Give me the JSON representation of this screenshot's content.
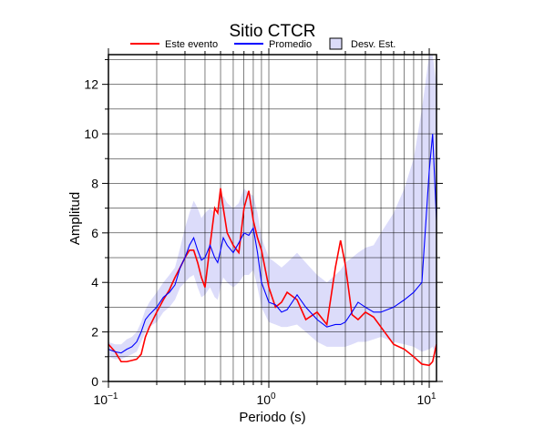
{
  "chart_data": {
    "type": "line",
    "title": "Sitio CTCR",
    "x_label": "Periodo (s)",
    "y_label": "Amplitud",
    "log_x": true,
    "grid": true,
    "xlim": [
      0.1,
      11.1
    ],
    "ylim": [
      0,
      13.2
    ],
    "xticks": [
      {
        "value": 0.1,
        "label": "10",
        "exponent": "−1"
      },
      {
        "value": 1,
        "label": "10",
        "exponent": "0"
      },
      {
        "value": 10,
        "label": "10",
        "exponent": "1"
      }
    ],
    "xminor": [
      0.2,
      0.3,
      0.4,
      0.5,
      0.6,
      0.7,
      0.8,
      0.9,
      2,
      3,
      4,
      5,
      6,
      7,
      8,
      9
    ],
    "yticks": [
      0,
      2,
      4,
      6,
      8,
      10,
      12
    ],
    "yminor": [
      1,
      3,
      5,
      7,
      9,
      11,
      13
    ],
    "x": [
      0.1,
      0.11,
      0.12,
      0.13,
      0.14,
      0.15,
      0.16,
      0.17,
      0.18,
      0.2,
      0.22,
      0.24,
      0.26,
      0.28,
      0.3,
      0.32,
      0.34,
      0.36,
      0.38,
      0.4,
      0.43,
      0.46,
      0.48,
      0.5,
      0.52,
      0.55,
      0.6,
      0.65,
      0.7,
      0.75,
      0.8,
      0.85,
      0.9,
      1.0,
      1.1,
      1.2,
      1.3,
      1.5,
      1.7,
      2.0,
      2.3,
      2.6,
      2.8,
      3.0,
      3.3,
      3.6,
      4,
      4.5,
      5,
      6,
      7,
      8,
      9,
      10,
      10.5,
      11.1
    ],
    "series": [
      {
        "name": "Este evento",
        "color": "#ff0000",
        "values": [
          1.5,
          1.2,
          0.8,
          0.8,
          0.85,
          0.9,
          1.1,
          1.8,
          2.2,
          2.8,
          3.3,
          3.7,
          4.2,
          4.6,
          5.0,
          5.3,
          5.3,
          4.8,
          4.2,
          3.8,
          5.5,
          7.0,
          6.8,
          7.8,
          7.0,
          6.0,
          5.5,
          5.2,
          7.0,
          7.7,
          6.5,
          5.8,
          5.3,
          3.8,
          3.0,
          3.2,
          3.6,
          3.3,
          2.5,
          2.8,
          2.3,
          4.6,
          5.7,
          4.7,
          2.7,
          2.5,
          2.8,
          2.6,
          2.2,
          1.5,
          1.3,
          1.0,
          0.7,
          0.65,
          0.8,
          1.5
        ]
      },
      {
        "name": "Promedio",
        "color": "#0000ff",
        "values": [
          1.3,
          1.2,
          1.15,
          1.3,
          1.4,
          1.6,
          2.0,
          2.5,
          2.7,
          3.0,
          3.4,
          3.6,
          3.9,
          4.6,
          5.0,
          5.5,
          5.8,
          5.3,
          4.9,
          5.0,
          5.5,
          5.0,
          4.8,
          5.3,
          5.8,
          5.5,
          5.2,
          5.6,
          6.0,
          5.9,
          6.2,
          5.2,
          4.0,
          3.2,
          3.1,
          2.8,
          2.9,
          3.5,
          3.0,
          2.5,
          2.2,
          2.3,
          2.3,
          2.4,
          2.8,
          3.2,
          3.0,
          2.8,
          2.8,
          3.0,
          3.3,
          3.6,
          4.0,
          8.5,
          10.0,
          6.5
        ]
      },
      {
        "name": "Desv. Est.",
        "color": "#dcdcfa",
        "type": "band",
        "lower": [
          1.0,
          0.9,
          0.9,
          1.0,
          1.1,
          1.2,
          1.6,
          2.0,
          2.2,
          2.4,
          2.8,
          3.0,
          3.3,
          3.8,
          4.0,
          4.2,
          4.3,
          3.8,
          3.4,
          3.5,
          3.8,
          3.4,
          3.3,
          3.8,
          4.2,
          4.0,
          3.8,
          4.0,
          4.3,
          4.3,
          4.5,
          3.8,
          3.0,
          2.4,
          2.3,
          2.2,
          2.2,
          2.3,
          2.0,
          1.6,
          1.4,
          1.4,
          1.4,
          1.4,
          1.5,
          1.6,
          1.6,
          1.7,
          1.8,
          1.6,
          1.5,
          1.4,
          1.2,
          1.3,
          1.4,
          1.0
        ],
        "upper": [
          1.6,
          1.5,
          1.5,
          1.7,
          1.8,
          2.0,
          2.4,
          2.9,
          3.2,
          3.6,
          4.0,
          4.3,
          4.6,
          5.4,
          6.2,
          6.8,
          7.3,
          7.0,
          6.6,
          6.8,
          7.0,
          6.8,
          6.7,
          7.3,
          7.5,
          7.2,
          7.0,
          7.2,
          7.8,
          7.6,
          7.5,
          6.8,
          5.8,
          5.0,
          4.8,
          4.6,
          4.8,
          5.2,
          4.8,
          4.3,
          4.0,
          4.3,
          4.5,
          4.8,
          5.0,
          5.2,
          5.4,
          5.5,
          6.0,
          6.8,
          7.8,
          9.0,
          11.0,
          13.2,
          13.2,
          12.0
        ]
      }
    ]
  }
}
